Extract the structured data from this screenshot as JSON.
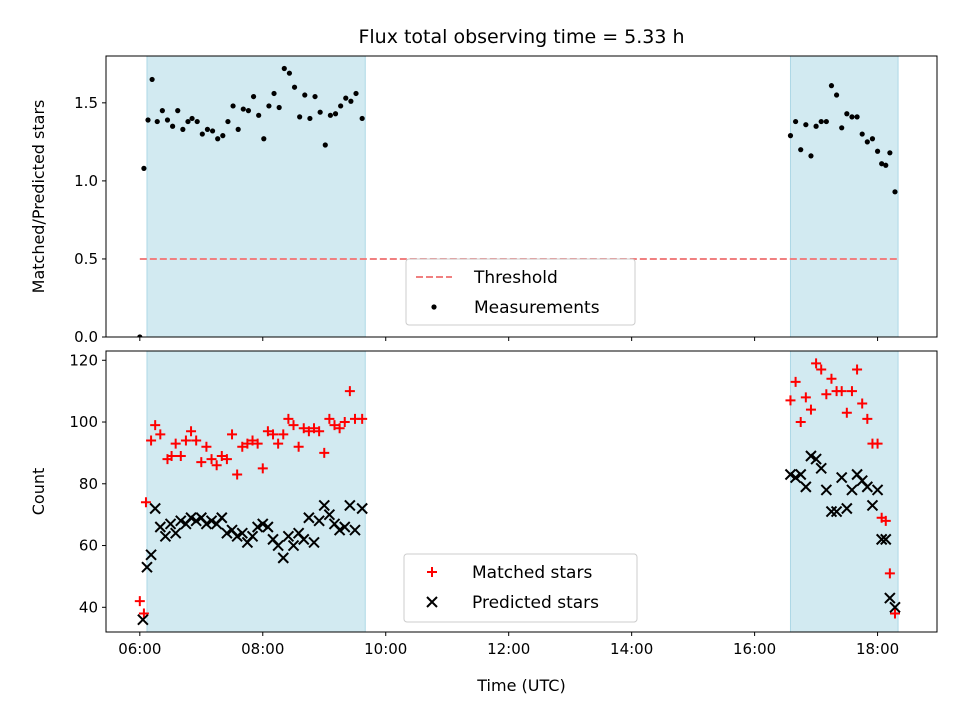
{
  "chart_data": [
    {
      "type": "scatter",
      "title": "Flux total observing time = 5.33 h",
      "ylabel": "Matched/Predicted stars",
      "xlabel": "",
      "xlim": [
        "05:27",
        "18:58"
      ],
      "ylim": [
        0,
        1.8
      ],
      "yticks": [
        "0.0",
        "0.5",
        "1.0",
        "1.5"
      ],
      "shaded_intervals": [
        [
          "06:07",
          "09:40"
        ],
        [
          "16:35",
          "18:20"
        ]
      ],
      "shade_color": "#add8e6",
      "threshold": {
        "name": "Threshold",
        "y": 0.5,
        "x_range": [
          "06:00",
          "18:20"
        ],
        "color": "#f08080"
      },
      "legend": {
        "placement": "bottom-center",
        "entries": [
          "Threshold",
          "Measurements"
        ]
      },
      "series": [
        {
          "name": "Measurements",
          "marker": "dot",
          "color": "#000000",
          "points": [
            [
              "06:00",
              0.0
            ],
            [
              "06:04",
              1.08
            ],
            [
              "06:08",
              1.39
            ],
            [
              "06:12",
              1.65
            ],
            [
              "06:17",
              1.38
            ],
            [
              "06:22",
              1.45
            ],
            [
              "06:27",
              1.39
            ],
            [
              "06:32",
              1.35
            ],
            [
              "06:37",
              1.45
            ],
            [
              "06:42",
              1.33
            ],
            [
              "06:47",
              1.38
            ],
            [
              "06:51",
              1.4
            ],
            [
              "06:56",
              1.38
            ],
            [
              "07:01",
              1.3
            ],
            [
              "07:06",
              1.33
            ],
            [
              "07:11",
              1.32
            ],
            [
              "07:16",
              1.27
            ],
            [
              "07:21",
              1.29
            ],
            [
              "07:26",
              1.38
            ],
            [
              "07:31",
              1.48
            ],
            [
              "07:36",
              1.33
            ],
            [
              "07:41",
              1.46
            ],
            [
              "07:46",
              1.45
            ],
            [
              "07:51",
              1.54
            ],
            [
              "07:56",
              1.42
            ],
            [
              "08:01",
              1.27
            ],
            [
              "08:06",
              1.48
            ],
            [
              "08:11",
              1.56
            ],
            [
              "08:16",
              1.47
            ],
            [
              "08:21",
              1.72
            ],
            [
              "08:26",
              1.69
            ],
            [
              "08:31",
              1.6
            ],
            [
              "08:36",
              1.41
            ],
            [
              "08:41",
              1.55
            ],
            [
              "08:46",
              1.4
            ],
            [
              "08:51",
              1.54
            ],
            [
              "08:56",
              1.44
            ],
            [
              "09:01",
              1.23
            ],
            [
              "09:06",
              1.42
            ],
            [
              "09:11",
              1.43
            ],
            [
              "09:16",
              1.48
            ],
            [
              "09:21",
              1.53
            ],
            [
              "09:26",
              1.51
            ],
            [
              "09:31",
              1.56
            ],
            [
              "09:37",
              1.4
            ],
            [
              "16:35",
              1.29
            ],
            [
              "16:40",
              1.38
            ],
            [
              "16:45",
              1.2
            ],
            [
              "16:50",
              1.36
            ],
            [
              "16:55",
              1.16
            ],
            [
              "17:00",
              1.35
            ],
            [
              "17:05",
              1.38
            ],
            [
              "17:10",
              1.38
            ],
            [
              "17:15",
              1.61
            ],
            [
              "17:20",
              1.55
            ],
            [
              "17:25",
              1.34
            ],
            [
              "17:30",
              1.43
            ],
            [
              "17:35",
              1.41
            ],
            [
              "17:40",
              1.41
            ],
            [
              "17:45",
              1.3
            ],
            [
              "17:50",
              1.25
            ],
            [
              "17:55",
              1.27
            ],
            [
              "18:00",
              1.19
            ],
            [
              "18:04",
              1.11
            ],
            [
              "18:08",
              1.1
            ],
            [
              "18:12",
              1.18
            ],
            [
              "18:17",
              0.93
            ]
          ]
        }
      ]
    },
    {
      "type": "scatter",
      "title": "",
      "ylabel": "Count",
      "xlabel": "Time (UTC)",
      "xlim": [
        "05:27",
        "18:58"
      ],
      "ylim": [
        32,
        123
      ],
      "yticks": [
        40,
        60,
        80,
        100,
        120
      ],
      "xticks": [
        "06:00",
        "08:00",
        "10:00",
        "12:00",
        "14:00",
        "16:00",
        "18:00"
      ],
      "shaded_intervals": [
        [
          "06:07",
          "09:40"
        ],
        [
          "16:35",
          "18:20"
        ]
      ],
      "shade_color": "#add8e6",
      "legend": {
        "placement": "bottom-center",
        "entries": [
          "Matched stars",
          "Predicted stars"
        ]
      },
      "series": [
        {
          "name": "Matched stars",
          "marker": "plus",
          "color": "#ff0000",
          "points": [
            [
              "06:00",
              42
            ],
            [
              "06:04",
              38
            ],
            [
              "06:06",
              74
            ],
            [
              "06:11",
              94
            ],
            [
              "06:15",
              99
            ],
            [
              "06:20",
              96
            ],
            [
              "06:27",
              88
            ],
            [
              "06:31",
              89
            ],
            [
              "06:35",
              93
            ],
            [
              "06:40",
              89
            ],
            [
              "06:45",
              94
            ],
            [
              "06:50",
              97
            ],
            [
              "06:55",
              94
            ],
            [
              "07:00",
              87
            ],
            [
              "07:05",
              92
            ],
            [
              "07:10",
              88
            ],
            [
              "07:15",
              86
            ],
            [
              "07:20",
              89
            ],
            [
              "07:25",
              88
            ],
            [
              "07:30",
              96
            ],
            [
              "07:35",
              83
            ],
            [
              "07:40",
              92
            ],
            [
              "07:45",
              93
            ],
            [
              "07:50",
              94
            ],
            [
              "07:55",
              93
            ],
            [
              "08:00",
              85
            ],
            [
              "08:05",
              97
            ],
            [
              "08:10",
              96
            ],
            [
              "08:15",
              93
            ],
            [
              "08:20",
              96
            ],
            [
              "08:25",
              101
            ],
            [
              "08:30",
              99
            ],
            [
              "08:35",
              92
            ],
            [
              "08:40",
              98
            ],
            [
              "08:45",
              97
            ],
            [
              "08:50",
              98
            ],
            [
              "08:55",
              97
            ],
            [
              "09:00",
              90
            ],
            [
              "09:05",
              101
            ],
            [
              "09:10",
              99
            ],
            [
              "09:15",
              98
            ],
            [
              "09:20",
              100
            ],
            [
              "09:25",
              110
            ],
            [
              "09:30",
              101
            ],
            [
              "09:37",
              101
            ],
            [
              "16:35",
              107
            ],
            [
              "16:40",
              113
            ],
            [
              "16:45",
              100
            ],
            [
              "16:50",
              108
            ],
            [
              "16:55",
              104
            ],
            [
              "17:00",
              119
            ],
            [
              "17:05",
              117
            ],
            [
              "17:10",
              109
            ],
            [
              "17:15",
              114
            ],
            [
              "17:20",
              110
            ],
            [
              "17:25",
              110
            ],
            [
              "17:30",
              103
            ],
            [
              "17:35",
              110
            ],
            [
              "17:40",
              117
            ],
            [
              "17:45",
              106
            ],
            [
              "17:50",
              101
            ],
            [
              "17:55",
              93
            ],
            [
              "18:00",
              93
            ],
            [
              "18:04",
              69
            ],
            [
              "18:08",
              68
            ],
            [
              "18:12",
              51
            ],
            [
              "18:17",
              38
            ]
          ]
        },
        {
          "name": "Predicted stars",
          "marker": "x",
          "color": "#000000",
          "points": [
            [
              "06:03",
              36
            ],
            [
              "06:07",
              53
            ],
            [
              "06:11",
              57
            ],
            [
              "06:15",
              72
            ],
            [
              "06:20",
              66
            ],
            [
              "06:25",
              63
            ],
            [
              "06:30",
              67
            ],
            [
              "06:35",
              64
            ],
            [
              "06:40",
              68
            ],
            [
              "06:45",
              67
            ],
            [
              "06:50",
              69
            ],
            [
              "06:55",
              68
            ],
            [
              "07:00",
              69
            ],
            [
              "07:05",
              67
            ],
            [
              "07:10",
              68
            ],
            [
              "07:15",
              67
            ],
            [
              "07:20",
              69
            ],
            [
              "07:25",
              64
            ],
            [
              "07:30",
              65
            ],
            [
              "07:35",
              63
            ],
            [
              "07:40",
              64
            ],
            [
              "07:45",
              61
            ],
            [
              "07:50",
              63
            ],
            [
              "07:55",
              66
            ],
            [
              "08:00",
              67
            ],
            [
              "08:05",
              66
            ],
            [
              "08:10",
              62
            ],
            [
              "08:15",
              60
            ],
            [
              "08:20",
              56
            ],
            [
              "08:25",
              63
            ],
            [
              "08:30",
              60
            ],
            [
              "08:35",
              64
            ],
            [
              "08:40",
              62
            ],
            [
              "08:45",
              69
            ],
            [
              "08:50",
              61
            ],
            [
              "08:55",
              68
            ],
            [
              "09:00",
              73
            ],
            [
              "09:05",
              70
            ],
            [
              "09:10",
              67
            ],
            [
              "09:15",
              65
            ],
            [
              "09:20",
              66
            ],
            [
              "09:25",
              73
            ],
            [
              "09:30",
              65
            ],
            [
              "09:37",
              72
            ],
            [
              "16:35",
              83
            ],
            [
              "16:40",
              82
            ],
            [
              "16:45",
              83
            ],
            [
              "16:50",
              79
            ],
            [
              "16:55",
              89
            ],
            [
              "17:00",
              88
            ],
            [
              "17:05",
              85
            ],
            [
              "17:10",
              78
            ],
            [
              "17:15",
              71
            ],
            [
              "17:20",
              71
            ],
            [
              "17:25",
              82
            ],
            [
              "17:30",
              72
            ],
            [
              "17:35",
              78
            ],
            [
              "17:40",
              83
            ],
            [
              "17:45",
              81
            ],
            [
              "17:50",
              79
            ],
            [
              "17:55",
              73
            ],
            [
              "18:00",
              78
            ],
            [
              "18:04",
              62
            ],
            [
              "18:08",
              62
            ],
            [
              "18:12",
              43
            ],
            [
              "18:17",
              40
            ]
          ]
        }
      ]
    }
  ]
}
